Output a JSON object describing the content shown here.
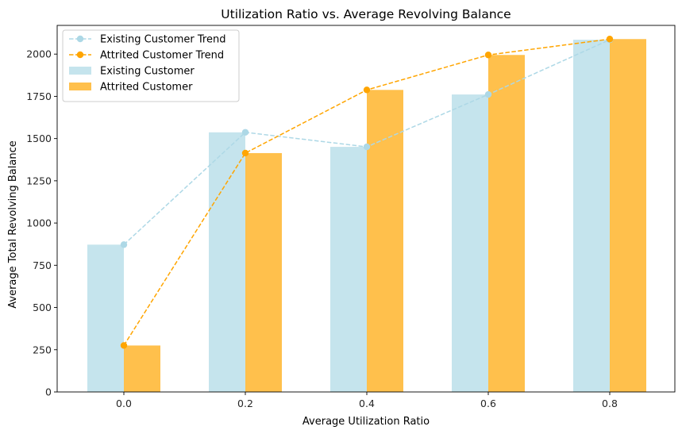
{
  "chart_data": {
    "type": "bar",
    "title": "Utilization Ratio vs. Average Revolving Balance",
    "xlabel": "Average Utilization Ratio",
    "ylabel": "Average Total Revolving Balance",
    "categories": [
      "0.0",
      "0.2",
      "0.4",
      "0.6",
      "0.8"
    ],
    "x": [
      0.0,
      0.2,
      0.4,
      0.6,
      0.8
    ],
    "ylim": [
      0,
      2170
    ],
    "yticks": [
      0,
      250,
      500,
      750,
      1000,
      1250,
      1500,
      1750,
      2000
    ],
    "series": [
      {
        "name": "Existing Customer",
        "kind": "bar",
        "color": "#add8e6",
        "values": [
          872,
          1537,
          1451,
          1761,
          2085
        ]
      },
      {
        "name": "Attrited Customer",
        "kind": "bar",
        "color": "#ffa500",
        "values": [
          275,
          1414,
          1788,
          1995,
          2089
        ]
      },
      {
        "name": "Existing Customer Trend",
        "kind": "line",
        "style": "dashed",
        "marker": "circle",
        "color": "#add8e6",
        "values": [
          872,
          1537,
          1451,
          1761,
          2085
        ]
      },
      {
        "name": "Attrited Customer Trend",
        "kind": "line",
        "style": "dashed",
        "marker": "circle",
        "color": "#ffa500",
        "values": [
          275,
          1414,
          1788,
          1995,
          2089
        ]
      }
    ],
    "legend": {
      "position": "top-left",
      "entries": [
        "Existing Customer Trend",
        "Attrited Customer Trend",
        "Existing Customer",
        "Attrited Customer"
      ]
    },
    "grid": false
  }
}
